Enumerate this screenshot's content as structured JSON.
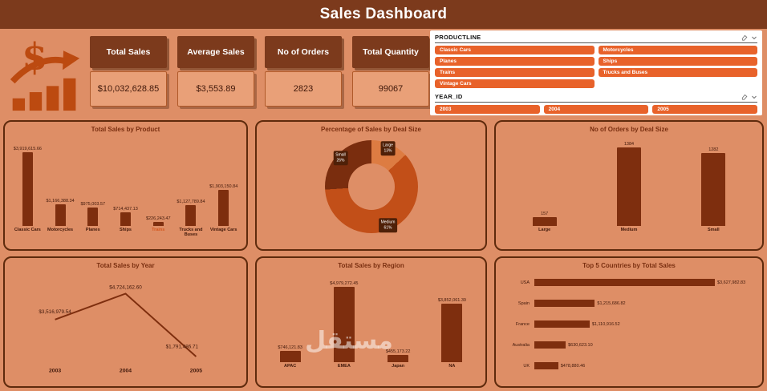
{
  "title": "Sales Dashboard",
  "colors": {
    "background": "#DE8E66",
    "header": "#7C3A1C",
    "bar": "#7E2E0E",
    "slicer_button": "#E8622A"
  },
  "kpis": [
    {
      "label": "Total Sales",
      "value": "$10,032,628.85"
    },
    {
      "label": "Average Sales",
      "value": "$3,553.89"
    },
    {
      "label": "No of Orders",
      "value": "2823"
    },
    {
      "label": "Total Quantity",
      "value": "99067"
    }
  ],
  "slicers": {
    "productline": {
      "title": "PRODUCTLINE",
      "options": [
        "Classic Cars",
        "Motorcycles",
        "Planes",
        "Ships",
        "Trains",
        "Trucks and Buses",
        "Vintage Cars"
      ]
    },
    "year": {
      "title": "YEAR_ID",
      "options": [
        "2003",
        "2004",
        "2005"
      ]
    }
  },
  "chart_data": [
    {
      "type": "bar",
      "title": "Total Sales by Product",
      "categories": [
        "Classic Cars",
        "Motorcycles",
        "Planes",
        "Ships",
        "Trains",
        "Trucks and Buses",
        "Vintage Cars"
      ],
      "values": [
        3919615.66,
        1166388.34,
        975003.57,
        714437.13,
        226243.47,
        1127789.84,
        1903150.84
      ],
      "labels": [
        "$3,919,615.66",
        "$1,166,388.34",
        "$975,003.57",
        "$714,437.13",
        "$226,243.47",
        "$1,127,789.84",
        "$1,903,150.84"
      ],
      "highlight_category": "Trains",
      "ylim": [
        0,
        4000000
      ]
    },
    {
      "type": "pie",
      "title": "Percentage of Sales by Deal Size",
      "categories": [
        "Large",
        "Medium",
        "Small"
      ],
      "values": [
        13,
        61,
        26
      ],
      "labels": [
        "Large 13%",
        "Medium 61%",
        "Small 26%"
      ],
      "colors": [
        "#DD7C42",
        "#C24F18",
        "#7A2D0E"
      ],
      "hole": true
    },
    {
      "type": "bar",
      "title": "No of Orders by Deal Size",
      "categories": [
        "Large",
        "Medium",
        "Small"
      ],
      "values": [
        157,
        1384,
        1282
      ],
      "labels": [
        "157",
        "1384",
        "1282"
      ],
      "ylim": [
        0,
        1400
      ]
    },
    {
      "type": "line",
      "title": "Total Sales by Year",
      "categories": [
        "2003",
        "2004",
        "2005"
      ],
      "values": [
        3516979.54,
        4724162.6,
        1791486.71
      ],
      "labels": [
        "$3,516,979.54",
        "$4,724,162.60",
        "$1,791,486.71"
      ],
      "ylim": [
        1500000,
        5000000
      ]
    },
    {
      "type": "bar",
      "title": "Total Sales by Region",
      "categories": [
        "APAC",
        "EMEA",
        "Japan",
        "NA"
      ],
      "values": [
        746121.83,
        4979272.45,
        455173.22,
        3852061.39
      ],
      "labels": [
        "$746,121.83",
        "$4,979,272.45",
        "$455,173.22",
        "$3,852,061.39"
      ],
      "ylim": [
        0,
        5000000
      ]
    },
    {
      "type": "hbar",
      "title": "Top 5 Countries by Total Sales",
      "categories": [
        "USA",
        "Spain",
        "France",
        "Australia",
        "UK"
      ],
      "values": [
        3627982.83,
        1215686.82,
        1110916.52,
        630623.1,
        478880.46
      ],
      "labels": [
        "$3,627,982.83",
        "$1,215,686.82",
        "$1,110,916.52",
        "$630,623.10",
        "$478,880.46"
      ]
    }
  ],
  "watermark": "مستقل"
}
